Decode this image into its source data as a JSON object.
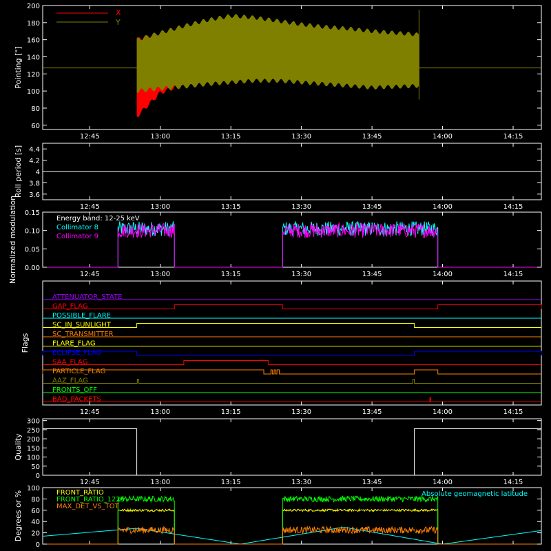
{
  "time_ticks": [
    "12:45",
    "13:00",
    "13:15",
    "13:30",
    "13:45",
    "14:00",
    "14:15"
  ],
  "colors": {
    "background": "#000000",
    "axes": "#ffffff",
    "x": "#ff0000",
    "y": "#808000",
    "cyan": "#00ffff",
    "magenta": "#ff00ff",
    "yellow": "#ffff00",
    "green": "#00ff00",
    "orange": "#ff8000",
    "blue": "#0000ff",
    "purple": "#a000ff"
  },
  "chart_data": [
    {
      "id": "pointing",
      "type": "line",
      "ylabel": "Pointing [\"]",
      "x_range": [
        "12:35",
        "14:21"
      ],
      "ylim": [
        55,
        200
      ],
      "yticks": [
        60,
        80,
        100,
        120,
        140,
        160,
        180,
        200
      ],
      "legend": [
        "X",
        "Y"
      ],
      "legend_position": "top-left",
      "data_start": "12:55",
      "data_end": "13:55",
      "series": [
        {
          "name": "X",
          "color": "#ff0000",
          "x": [
            "12:55",
            "13:00",
            "13:05",
            "13:10",
            "13:15",
            "13:20",
            "13:25",
            "13:30",
            "13:35",
            "13:40",
            "13:45",
            "13:50",
            "13:55"
          ],
          "upper": [
            160,
            166,
            169,
            170,
            171,
            170,
            169,
            167,
            166,
            165,
            163,
            163,
            162
          ],
          "lower": [
            70,
            98,
            108,
            116,
            122,
            125,
            126,
            125,
            125,
            124,
            124,
            125,
            125
          ]
        },
        {
          "name": "Y",
          "color": "#808000",
          "x": [
            "12:55",
            "13:00",
            "13:05",
            "13:10",
            "13:15",
            "13:20",
            "13:25",
            "13:30",
            "13:35",
            "13:40",
            "13:45",
            "13:50",
            "13:55"
          ],
          "upper": [
            160,
            168,
            176,
            183,
            188,
            186,
            182,
            178,
            175,
            173,
            170,
            168,
            166
          ],
          "lower": [
            100,
            103,
            105,
            108,
            110,
            112,
            112,
            110,
            108,
            106,
            104,
            105,
            106
          ]
        }
      ],
      "baseline_value": 127
    },
    {
      "id": "roll-period",
      "type": "line",
      "ylabel": "Roll period [s]",
      "x_range": [
        "12:35",
        "14:21"
      ],
      "ylim": [
        3.5,
        4.5
      ],
      "yticks": [
        3.6,
        3.8,
        4.0,
        4.2,
        4.4
      ],
      "series": [
        {
          "color": "#ffffff",
          "x": [
            "12:35",
            "14:21"
          ],
          "y": [
            4.0,
            4.0
          ]
        }
      ]
    },
    {
      "id": "modulation",
      "type": "line",
      "ylabel": "Normalized modulation",
      "x_range": [
        "12:35",
        "14:21"
      ],
      "ylim": [
        0.0,
        0.15
      ],
      "yticks": [
        0.0,
        0.05,
        0.1,
        0.15
      ],
      "ytick_labels": [
        "0.00",
        "0.05",
        "0.10",
        "0.15"
      ],
      "legend_title": "Energy band: 12-25 keV",
      "legend": [
        "Collimator 8",
        "Collimator 9"
      ],
      "legend_position": "top-left",
      "active_intervals": [
        [
          "12:51",
          "13:03"
        ],
        [
          "13:26",
          "13:59"
        ]
      ],
      "series": [
        {
          "name": "Collimator 8",
          "color": "#00ffff",
          "typical": 0.105,
          "spread": 0.02
        },
        {
          "name": "Collimator 9",
          "color": "#ff00ff",
          "typical": 0.1,
          "spread": 0.02
        }
      ]
    },
    {
      "id": "flags",
      "type": "line",
      "ylabel": "Flags",
      "x_range": [
        "12:35",
        "14:21"
      ],
      "flags": [
        {
          "name": "ATTENUATOR_STATE",
          "color": "#a000ff",
          "highs": []
        },
        {
          "name": "GAP_FLAG",
          "color": "#ff0000",
          "highs": [
            [
              "13:03",
              "13:26"
            ],
            [
              "13:59",
              "14:21"
            ]
          ]
        },
        {
          "name": "POSSIBLE_FLARE",
          "color": "#00ffff",
          "highs": []
        },
        {
          "name": "SC_IN_SUNLIGHT",
          "color": "#ffff00",
          "highs": [
            [
              "12:55",
              "13:54"
            ]
          ]
        },
        {
          "name": "SC_TRANSMITTER",
          "color": "#ff8000",
          "highs": []
        },
        {
          "name": "FLARE_FLAG",
          "color": "#ffff00",
          "highs": []
        },
        {
          "name": "ECLIPSE_FLAG",
          "color": "#0000ff",
          "highs": [
            [
              "12:35",
              "12:55"
            ],
            [
              "13:54",
              "14:21"
            ]
          ]
        },
        {
          "name": "SAA_FLAG",
          "color": "#ff0000",
          "highs": [
            [
              "13:05",
              "13:23"
            ]
          ]
        },
        {
          "name": "PARTICLE_FLAG",
          "color": "#ff8000",
          "highs": [
            [
              "12:35",
              "13:22"
            ],
            [
              "13:23.5",
              "13:23.8"
            ],
            [
              "13:24.2",
              "13:24.5"
            ],
            [
              "13:24.8",
              "13:25.3"
            ],
            [
              "13:54",
              "13:59"
            ]
          ]
        },
        {
          "name": "AAZ_FLAG",
          "color": "#808000",
          "highs": [
            [
              "12:55.1",
              "12:55.4"
            ],
            [
              "13:53.7",
              "13:54"
            ]
          ]
        },
        {
          "name": "FRONTS_OFF",
          "color": "#00ff00",
          "highs": []
        },
        {
          "name": "BAD_PACKETS",
          "color": "#ff0000",
          "highs": [
            [
              "13:57.3",
              "13:57.5"
            ]
          ]
        }
      ]
    },
    {
      "id": "quality",
      "type": "line",
      "ylabel": "Quality",
      "x_range": [
        "12:35",
        "14:21"
      ],
      "ylim": [
        0,
        310
      ],
      "yticks": [
        0,
        50,
        100,
        150,
        200,
        250,
        300
      ],
      "series": [
        {
          "color": "#ffffff",
          "x": [
            "12:35",
            "12:55",
            "12:55",
            "13:54",
            "13:54",
            "14:21"
          ],
          "y": [
            255,
            255,
            0,
            0,
            255,
            255
          ]
        }
      ]
    },
    {
      "id": "geo",
      "type": "line",
      "ylabel": "Degrees or %",
      "x_range": [
        "12:35",
        "14:21"
      ],
      "ylim": [
        0,
        100
      ],
      "yticks": [
        0,
        20,
        40,
        60,
        80,
        100
      ],
      "legend": [
        "FRONT_RATIO",
        "FRONT_RATIO_1225",
        "MAX_DET_VS_TOT"
      ],
      "legend_right": "Absolute geomagnetic latitude",
      "legend_position": "top-left",
      "active_intervals": [
        [
          "12:51",
          "13:03"
        ],
        [
          "13:26",
          "13:59"
        ]
      ],
      "series": [
        {
          "name": "FRONT_RATIO",
          "color": "#ffff00",
          "typical": 60,
          "spread": 2
        },
        {
          "name": "FRONT_RATIO_1225",
          "color": "#00ff00",
          "typical": 80,
          "spread": 5
        },
        {
          "name": "MAX_DET_VS_TOT",
          "color": "#ff8000",
          "typical": 25,
          "spread": 6
        },
        {
          "name": "Absolute geomagnetic latitude",
          "color": "#00ffff",
          "x": [
            "12:35",
            "12:55",
            "13:17",
            "13:39",
            "14:00",
            "14:21"
          ],
          "y": [
            14,
            28,
            0,
            30,
            0,
            24
          ]
        }
      ]
    }
  ]
}
